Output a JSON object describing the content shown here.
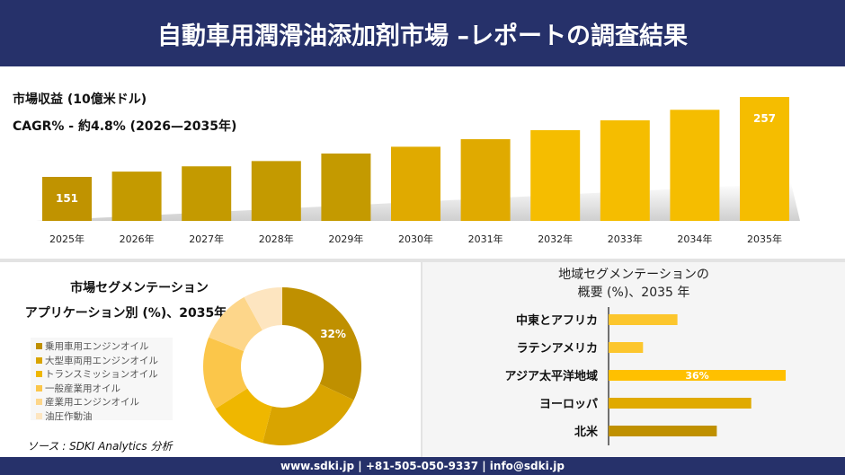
{
  "header": {
    "title": "自動車用潤滑油添加剤市場 –レポートの調査結果"
  },
  "colors": {
    "header_bg": "#26316a",
    "bar_dark": "#c49a00",
    "bar_light": "#f5c000"
  },
  "chart_data": [
    {
      "type": "bar",
      "title": "市場収益 (10億米ドル)",
      "subtitle": "CAGR% - 約4.8% (2026—2035年)",
      "categories": [
        "2025年",
        "2026年",
        "2027年",
        "2028年",
        "2029年",
        "2030年",
        "2031年",
        "2032年",
        "2033年",
        "2034年",
        "2035年"
      ],
      "values": [
        151,
        158,
        165,
        172,
        182,
        191,
        201,
        213,
        226,
        240,
        257
      ],
      "data_labels": {
        "0": "151",
        "10": "257"
      }
    },
    {
      "type": "pie",
      "title": "市場セグメンテーション",
      "subtitle": "アプリケーション別 (%)、2035年",
      "labels": [
        "乗用車用エンジンオイル",
        "大型車両用エンジンオイル",
        "トランスミッションオイル",
        "一般産業用オイル",
        "産業用エンジンオイル",
        "油圧作動油"
      ],
      "values": [
        32,
        22,
        12,
        15,
        11,
        8
      ],
      "colors": [
        "#bf9000",
        "#d9a400",
        "#efb700",
        "#fbc64a",
        "#fdd68a",
        "#fde5c0"
      ],
      "data_labels": {
        "0": "32%"
      },
      "legend": "left"
    },
    {
      "type": "bar",
      "orientation": "horizontal",
      "title": "地域セグメンテーションの",
      "subtitle": "概要 (%)、2035 年",
      "categories": [
        "中東とアフリカ",
        "ラテンアメリカ",
        "アジア太平洋地域",
        "ヨーロッパ",
        "北米"
      ],
      "values": [
        14,
        7,
        36,
        29,
        22
      ],
      "colors": [
        "#fcc62d",
        "#fcc62d",
        "#ffc000",
        "#e0aa00",
        "#bf9000"
      ],
      "data_labels": {
        "2": "36%"
      }
    }
  ],
  "source": "ソース : SDKI Analytics 分析",
  "footer": {
    "text": "www.sdki.jp | +81-505-050-9337 | info@sdki.jp"
  }
}
